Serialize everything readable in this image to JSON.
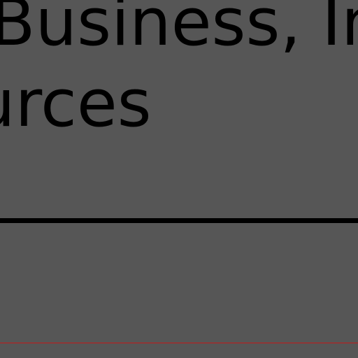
{
  "heading": {
    "line_1": "Business, In",
    "line_2": "urces"
  },
  "colors": {
    "background": "#565656",
    "text": "#000000",
    "divider": "#000000",
    "accent_rule": "#c21a1a"
  }
}
